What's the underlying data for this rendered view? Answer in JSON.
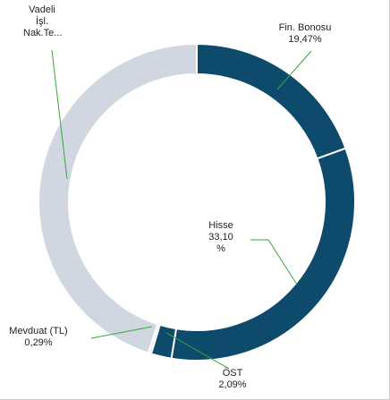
{
  "chart_data": {
    "type": "donut",
    "categories": [
      "Fin. Bonosu",
      "Hisse",
      "ÖST",
      "Mevduat (TL)",
      "Vadeli İşl. Nak.Te..."
    ],
    "values": [
      19.47,
      33.1,
      2.09,
      0.29,
      45.05
    ],
    "value_labels": [
      "19,47%",
      "33,10 %",
      "2,09%",
      "0,29%",
      null
    ],
    "colors": [
      "#0d4a6b",
      "#0d4a6b",
      "#0d4a6b",
      "#e4e8ee",
      "#d0d7e0"
    ]
  }
}
